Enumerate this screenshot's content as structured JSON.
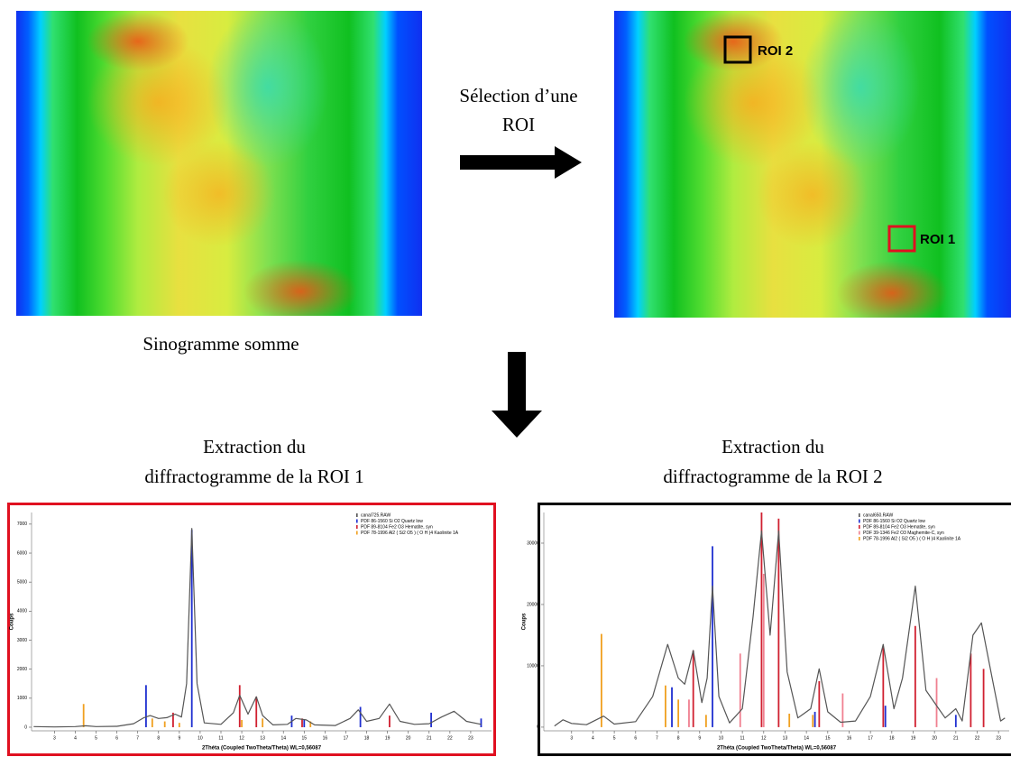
{
  "arrow_label": [
    "Sélection d’une",
    "ROI"
  ],
  "sinogram_caption": "Sinogramme somme",
  "rois": [
    {
      "label": "ROI 2"
    },
    {
      "label": "ROI 1"
    }
  ],
  "plots": [
    {
      "title": [
        "Extraction du",
        "diffractogramme de la ROI 1"
      ],
      "x_label": "2Théta (Coupled TwoTheta/Theta) WL=0,56087",
      "y_label": "Coups",
      "xlim": [
        1.9,
        24
      ],
      "ylim": [
        -125,
        7400
      ],
      "xticks": [
        3,
        4,
        5,
        6,
        7,
        8,
        9,
        10,
        11,
        12,
        13,
        14,
        15,
        16,
        17,
        18,
        19,
        20,
        21,
        22,
        23
      ],
      "yticks": [
        0,
        1000,
        2000,
        3000,
        4000,
        5000,
        6000,
        7000
      ],
      "curve": {
        "name": "canal725.RAW",
        "color": "#555555",
        "x": [
          2,
          3,
          4,
          4.5,
          5,
          6,
          6.8,
          7.3,
          7.6,
          8,
          8.4,
          8.8,
          9.1,
          9.35,
          9.6,
          9.85,
          10.2,
          11,
          11.6,
          11.9,
          12.3,
          12.7,
          13,
          13.5,
          14.2,
          14.6,
          15.1,
          15.5,
          16.5,
          17.2,
          17.6,
          18,
          18.6,
          19.1,
          19.6,
          20.3,
          21,
          21.6,
          22.2,
          22.8,
          23.5
        ],
        "values": [
          20,
          10,
          20,
          50,
          20,
          30,
          120,
          330,
          400,
          300,
          330,
          450,
          350,
          1500,
          6850,
          1500,
          150,
          100,
          500,
          1100,
          450,
          1050,
          400,
          80,
          100,
          300,
          250,
          80,
          60,
          300,
          600,
          200,
          300,
          800,
          200,
          100,
          120,
          350,
          550,
          200,
          100
        ]
      },
      "phases": [
        {
          "name": "PDF 86-1560 Si O2 Quartz low",
          "color": "#1f2fd0",
          "x": [
            7.4,
            9.6,
            14.4,
            15.0,
            17.7,
            21.1,
            23.5
          ],
          "values": [
            1450,
            6800,
            400,
            250,
            700,
            500,
            300
          ]
        },
        {
          "name": "PDF 89-8104 Fe2 O3 Hematite, syn",
          "color": "#d02030",
          "x": [
            8.7,
            11.9,
            12.7,
            14.9,
            19.1
          ],
          "values": [
            500,
            1450,
            1050,
            300,
            400
          ]
        },
        {
          "name": "PDF 78-1996 Al2 ( Si2 O5 ) ( O H )4 Kaolinite 1A",
          "color": "#f0a020",
          "x": [
            4.4,
            7.7,
            8.3,
            9.0,
            12.0,
            13.0,
            15.3
          ],
          "values": [
            800,
            300,
            200,
            150,
            250,
            300,
            200
          ]
        }
      ]
    },
    {
      "title": [
        "Extraction du",
        "diffractogramme de la ROI 2"
      ],
      "x_label": "2Théta (Coupled TwoTheta/Theta) WL=0,56087",
      "y_label": "Coups",
      "xlim": [
        1.7,
        23.5
      ],
      "ylim": [
        -600,
        35000
      ],
      "xticks": [
        3,
        4,
        5,
        6,
        7,
        8,
        9,
        10,
        11,
        12,
        13,
        14,
        15,
        16,
        17,
        18,
        19,
        20,
        21,
        22,
        23
      ],
      "yticks": [
        0,
        10000,
        20000,
        30000
      ],
      "curve": {
        "name": "canal650.RAW",
        "color": "#555555",
        "x": [
          2.2,
          2.6,
          3,
          3.7,
          4.5,
          5,
          6,
          6.8,
          7.5,
          8,
          8.3,
          8.7,
          9.1,
          9.35,
          9.6,
          9.9,
          10.4,
          11,
          11.5,
          11.9,
          12.3,
          12.7,
          13.1,
          13.6,
          14.2,
          14.6,
          15,
          15.6,
          16.3,
          17,
          17.6,
          18.1,
          18.5,
          19.1,
          19.6,
          20.1,
          20.5,
          21,
          21.3,
          21.8,
          22.2,
          22.7,
          23.1,
          23.3
        ],
        "values": [
          200,
          1200,
          600,
          400,
          1800,
          500,
          900,
          5000,
          13500,
          8000,
          7000,
          12500,
          4000,
          8000,
          23000,
          5000,
          700,
          3000,
          18000,
          32000,
          15000,
          32000,
          9000,
          1500,
          3000,
          9500,
          2500,
          800,
          1000,
          5000,
          13500,
          3000,
          8000,
          23000,
          6000,
          3500,
          1500,
          3000,
          1000,
          15000,
          17000,
          8000,
          1000,
          1500
        ]
      },
      "phases": [
        {
          "name": "PDF 86-1560 Si O2 Quartz low",
          "color": "#1f2fd0",
          "x": [
            7.7,
            9.6,
            14.4,
            17.7,
            21.0
          ],
          "values": [
            6500,
            29500,
            2500,
            3500,
            2000
          ]
        },
        {
          "name": "PDF 89-8104 Fe2 O3 Hematite, syn",
          "color": "#d02030",
          "x": [
            8.7,
            11.9,
            12.7,
            14.6,
            17.6,
            19.1,
            21.7,
            22.3
          ],
          "values": [
            12500,
            35000,
            34000,
            7500,
            13000,
            16500,
            12000,
            9500
          ]
        },
        {
          "name": "PDF 39-1346 Fe2 O3 Maghemite-C, syn",
          "color": "#f08090",
          "x": [
            8.5,
            10.9,
            12.0,
            15.7,
            20.1
          ],
          "values": [
            4500,
            12000,
            25000,
            5500,
            8000
          ]
        },
        {
          "name": "PDF 78-1996 Al2 ( Si2 O5 ) ( O H )4 Kaolinite 1A",
          "color": "#f0a020",
          "x": [
            4.4,
            7.4,
            8.0,
            9.3,
            13.2,
            14.3
          ],
          "values": [
            15200,
            6800,
            4500,
            2000,
            2200,
            2000
          ]
        }
      ]
    }
  ]
}
